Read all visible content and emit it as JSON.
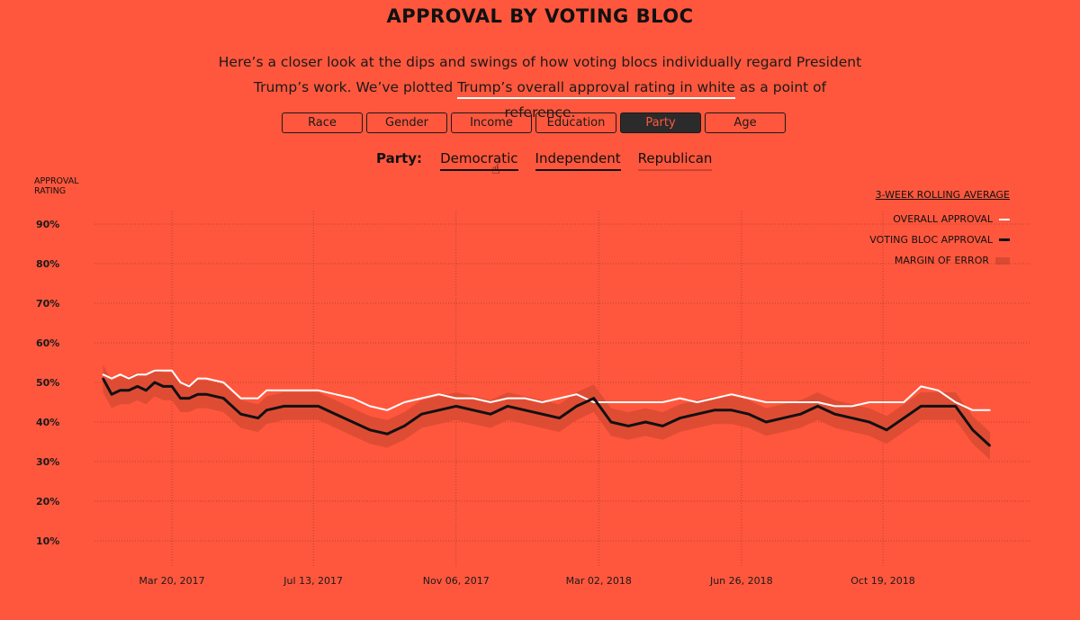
{
  "header": {
    "title": "APPROVAL BY VOTING BLOC",
    "intro_before": "Here’s a closer look at the dips and swings of how voting blocs individually regard President Trump’s work. We’ve plotted ",
    "intro_link": "Trump’s overall approval rating in white",
    "intro_after": " as a point of reference."
  },
  "tabs": [
    {
      "label": "Race"
    },
    {
      "label": "Gender"
    },
    {
      "label": "Income"
    },
    {
      "label": "Education"
    },
    {
      "label": "Party"
    },
    {
      "label": "Age"
    }
  ],
  "active_tab": "Party",
  "subnav": {
    "label": "Party:",
    "options": [
      {
        "label": "Democratic"
      },
      {
        "label": "Independent"
      },
      {
        "label": "Republican"
      }
    ]
  },
  "colors": {
    "background": "#FF573D",
    "overall": "#FFFFFF",
    "bloc": "#111111",
    "moe": "#D94A33"
  },
  "chart_data": {
    "type": "line",
    "ylabel": "APPROVAL RATING",
    "ylim": [
      5,
      95
    ],
    "yticks": [
      "90%",
      "80%",
      "70%",
      "60%",
      "50%",
      "40%",
      "30%",
      "20%",
      "10%"
    ],
    "xtick_labels": [
      "Mar 20, 2017",
      "Jul 13, 2017",
      "Nov 06, 2017",
      "Mar 02, 2018",
      "Jun 26, 2018",
      "Oct 19, 2018"
    ],
    "xtick_dates": [
      "2017-03-20",
      "2017-07-13",
      "2017-11-06",
      "2018-03-02",
      "2018-06-26",
      "2018-10-19"
    ],
    "grid": true,
    "legend": {
      "title": "3-WEEK ROLLING AVERAGE",
      "items": [
        "OVERALL APPROVAL",
        "VOTING BLOC APPROVAL",
        "MARGIN OF ERROR"
      ],
      "position": "top-right"
    },
    "series": [
      {
        "name": "OVERALL APPROVAL",
        "x": [
          "2017-01-23",
          "2017-01-30",
          "2017-02-06",
          "2017-02-13",
          "2017-02-20",
          "2017-02-27",
          "2017-03-06",
          "2017-03-13",
          "2017-03-20",
          "2017-03-27",
          "2017-04-03",
          "2017-04-10",
          "2017-04-17",
          "2017-05-01",
          "2017-05-15",
          "2017-05-29",
          "2017-06-05",
          "2017-06-19",
          "2017-07-03",
          "2017-07-17",
          "2017-07-31",
          "2017-08-14",
          "2017-08-28",
          "2017-09-11",
          "2017-09-25",
          "2017-10-09",
          "2017-10-23",
          "2017-11-06",
          "2017-11-20",
          "2017-12-04",
          "2017-12-18",
          "2018-01-01",
          "2018-01-15",
          "2018-01-29",
          "2018-02-12",
          "2018-02-26",
          "2018-03-12",
          "2018-03-26",
          "2018-04-09",
          "2018-04-23",
          "2018-05-07",
          "2018-05-21",
          "2018-06-04",
          "2018-06-18",
          "2018-07-02",
          "2018-07-16",
          "2018-07-30",
          "2018-08-13",
          "2018-08-27",
          "2018-09-10",
          "2018-09-24",
          "2018-10-08",
          "2018-10-22",
          "2018-11-05",
          "2018-11-19",
          "2018-12-03",
          "2018-12-17",
          "2018-12-31",
          "2019-01-14"
        ],
        "y": [
          52,
          51,
          52,
          51,
          52,
          52,
          53,
          53,
          53,
          50,
          49,
          51,
          51,
          50,
          46,
          46,
          48,
          48,
          48,
          48,
          47,
          46,
          44,
          43,
          45,
          46,
          47,
          46,
          46,
          45,
          46,
          46,
          45,
          46,
          47,
          45,
          45,
          45,
          45,
          45,
          46,
          45,
          46,
          47,
          46,
          45,
          45,
          45,
          45,
          44,
          44,
          45,
          45,
          45,
          49,
          48,
          45,
          43,
          43
        ]
      },
      {
        "name": "VOTING BLOC APPROVAL",
        "x": [
          "2017-01-23",
          "2017-01-30",
          "2017-02-06",
          "2017-02-13",
          "2017-02-20",
          "2017-02-27",
          "2017-03-06",
          "2017-03-13",
          "2017-03-20",
          "2017-03-27",
          "2017-04-03",
          "2017-04-10",
          "2017-04-17",
          "2017-05-01",
          "2017-05-15",
          "2017-05-29",
          "2017-06-05",
          "2017-06-19",
          "2017-07-03",
          "2017-07-17",
          "2017-07-31",
          "2017-08-14",
          "2017-08-28",
          "2017-09-11",
          "2017-09-25",
          "2017-10-09",
          "2017-10-23",
          "2017-11-06",
          "2017-11-20",
          "2017-12-04",
          "2017-12-18",
          "2018-01-01",
          "2018-01-15",
          "2018-01-29",
          "2018-02-12",
          "2018-02-26",
          "2018-03-12",
          "2018-03-26",
          "2018-04-09",
          "2018-04-23",
          "2018-05-07",
          "2018-05-21",
          "2018-06-04",
          "2018-06-18",
          "2018-07-02",
          "2018-07-16",
          "2018-07-30",
          "2018-08-13",
          "2018-08-27",
          "2018-09-10",
          "2018-09-24",
          "2018-10-08",
          "2018-10-22",
          "2018-11-05",
          "2018-11-19",
          "2018-12-03",
          "2018-12-17",
          "2018-12-31",
          "2019-01-14"
        ],
        "y": [
          51,
          47,
          48,
          48,
          49,
          48,
          50,
          49,
          49,
          46,
          46,
          47,
          47,
          46,
          42,
          41,
          43,
          44,
          44,
          44,
          42,
          40,
          38,
          37,
          39,
          42,
          43,
          44,
          43,
          42,
          44,
          43,
          42,
          41,
          44,
          46,
          40,
          39,
          40,
          39,
          41,
          42,
          43,
          43,
          42,
          40,
          41,
          42,
          44,
          42,
          41,
          40,
          38,
          41,
          44,
          44,
          44,
          38,
          34
        ]
      }
    ],
    "margin_of_error": 3.5
  }
}
